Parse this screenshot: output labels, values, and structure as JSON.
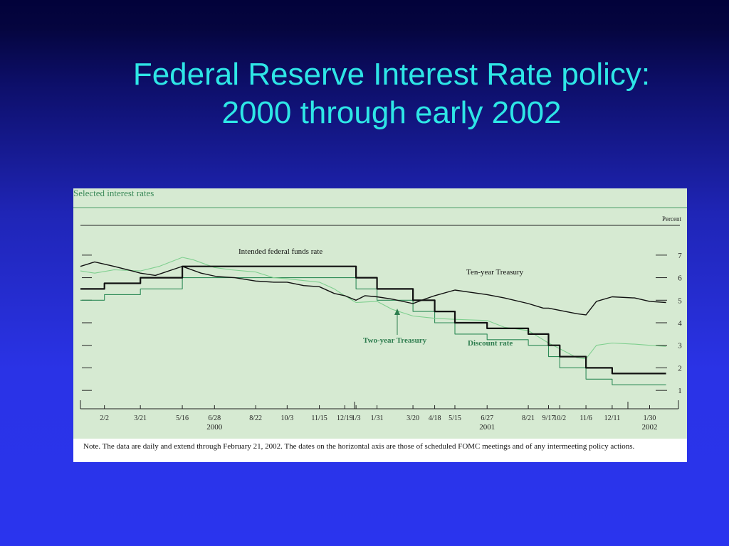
{
  "slide": {
    "title_line1": "Federal Reserve Interest Rate policy:",
    "title_line2": "2000 through early 2002"
  },
  "colors": {
    "background_top": "#02023a",
    "background_bottom": "#2a34ee",
    "title": "#2ee6e6",
    "panel": "#d6ead2",
    "black_series": "#111111",
    "green_series": "#2e8b57",
    "light_green_series": "#7fcf8f"
  },
  "chart_data": {
    "type": "line",
    "title": "Selected interest rates",
    "ylabel": "Percent",
    "ylim": [
      0.5,
      7.5
    ],
    "yticks": [
      1,
      2,
      3,
      4,
      5,
      6,
      7
    ],
    "xlim": [
      "2000-01-01",
      "2002-02-28"
    ],
    "x_tick_labels": [
      {
        "label": "2/2",
        "date": "2000-02-02"
      },
      {
        "label": "3/21",
        "date": "2000-03-21"
      },
      {
        "label": "5/16",
        "date": "2000-05-16"
      },
      {
        "label": "6/28",
        "date": "2000-06-28"
      },
      {
        "label": "8/22",
        "date": "2000-08-22"
      },
      {
        "label": "10/3",
        "date": "2000-10-03"
      },
      {
        "label": "11/15",
        "date": "2000-11-15"
      },
      {
        "label": "12/19",
        "date": "2000-12-19"
      },
      {
        "label": "1/3",
        "date": "2001-01-03"
      },
      {
        "label": "1/31",
        "date": "2001-01-31"
      },
      {
        "label": "3/20",
        "date": "2001-03-20"
      },
      {
        "label": "4/18",
        "date": "2001-04-18"
      },
      {
        "label": "5/15",
        "date": "2001-05-15"
      },
      {
        "label": "6/27",
        "date": "2001-06-27"
      },
      {
        "label": "8/21",
        "date": "2001-08-21"
      },
      {
        "label": "9/17",
        "date": "2001-09-17"
      },
      {
        "label": "10/2",
        "date": "2001-10-02"
      },
      {
        "label": "11/6",
        "date": "2001-11-06"
      },
      {
        "label": "12/11",
        "date": "2001-12-11"
      },
      {
        "label": "1/30",
        "date": "2002-01-30"
      }
    ],
    "year_labels": [
      {
        "label": "2000",
        "date": "2000-06-28"
      },
      {
        "label": "2001",
        "date": "2001-06-27"
      },
      {
        "label": "2002",
        "date": "2002-01-30"
      }
    ],
    "series": [
      {
        "name": "Intended federal funds rate",
        "style": "step",
        "x": [
          "2000-01-01",
          "2000-02-02",
          "2000-03-21",
          "2000-05-16",
          "2001-01-03",
          "2001-01-31",
          "2001-03-20",
          "2001-04-18",
          "2001-05-15",
          "2001-06-27",
          "2001-08-21",
          "2001-09-17",
          "2001-10-02",
          "2001-11-06",
          "2001-12-11",
          "2002-02-21"
        ],
        "y": [
          5.5,
          5.75,
          6.0,
          6.5,
          6.0,
          5.5,
          5.0,
          4.5,
          4.0,
          3.75,
          3.5,
          3.0,
          2.5,
          2.0,
          1.75,
          1.75
        ]
      },
      {
        "name": "Discount rate",
        "style": "step",
        "x": [
          "2000-01-01",
          "2000-02-02",
          "2000-03-21",
          "2000-05-16",
          "2001-01-03",
          "2001-01-31",
          "2001-03-20",
          "2001-04-18",
          "2001-05-15",
          "2001-06-27",
          "2001-08-21",
          "2001-09-17",
          "2001-10-02",
          "2001-11-06",
          "2001-12-11",
          "2002-02-21"
        ],
        "y": [
          5.0,
          5.25,
          5.5,
          6.0,
          5.5,
          5.0,
          4.5,
          4.0,
          3.5,
          3.25,
          3.0,
          2.5,
          2.0,
          1.5,
          1.25,
          1.25
        ]
      },
      {
        "name": "Ten-year Treasury",
        "style": "line",
        "x": [
          "2000-01-01",
          "2000-01-20",
          "2000-02-15",
          "2000-03-10",
          "2000-03-21",
          "2000-04-10",
          "2000-05-16",
          "2000-06-10",
          "2000-07-01",
          "2000-07-25",
          "2000-08-22",
          "2000-09-15",
          "2000-10-03",
          "2000-10-25",
          "2000-11-15",
          "2000-12-05",
          "2000-12-19",
          "2001-01-03",
          "2001-01-15",
          "2001-01-31",
          "2001-02-20",
          "2001-03-20",
          "2001-04-05",
          "2001-04-18",
          "2001-05-15",
          "2001-06-05",
          "2001-06-27",
          "2001-07-20",
          "2001-08-21",
          "2001-09-10",
          "2001-09-17",
          "2001-10-02",
          "2001-10-25",
          "2001-11-06",
          "2001-11-20",
          "2001-12-11",
          "2002-01-10",
          "2002-01-30",
          "2002-02-21"
        ],
        "y": [
          6.5,
          6.7,
          6.5,
          6.3,
          6.2,
          6.1,
          6.5,
          6.2,
          6.05,
          6.0,
          5.85,
          5.8,
          5.8,
          5.65,
          5.6,
          5.3,
          5.2,
          5.0,
          5.2,
          5.15,
          5.05,
          4.85,
          5.05,
          5.2,
          5.45,
          5.35,
          5.25,
          5.1,
          4.85,
          4.65,
          4.65,
          4.55,
          4.4,
          4.35,
          4.95,
          5.15,
          5.1,
          4.95,
          4.9
        ]
      },
      {
        "name": "Two-year Treasury",
        "style": "line",
        "x": [
          "2000-01-01",
          "2000-01-20",
          "2000-02-15",
          "2000-03-21",
          "2000-04-15",
          "2000-05-16",
          "2000-05-30",
          "2000-06-28",
          "2000-07-20",
          "2000-08-22",
          "2000-09-15",
          "2000-10-03",
          "2000-11-15",
          "2000-12-05",
          "2000-12-19",
          "2001-01-03",
          "2001-01-31",
          "2001-02-20",
          "2001-03-20",
          "2001-04-18",
          "2001-05-15",
          "2001-06-27",
          "2001-07-20",
          "2001-08-21",
          "2001-09-17",
          "2001-10-02",
          "2001-10-25",
          "2001-11-06",
          "2001-11-20",
          "2001-12-11",
          "2002-01-10",
          "2002-01-30",
          "2002-02-21"
        ],
        "y": [
          6.3,
          6.2,
          6.35,
          6.3,
          6.5,
          6.9,
          6.8,
          6.45,
          6.35,
          6.25,
          6.0,
          5.95,
          5.8,
          5.5,
          5.2,
          4.9,
          4.95,
          4.6,
          4.3,
          4.2,
          4.15,
          4.1,
          3.8,
          3.65,
          3.1,
          2.85,
          2.45,
          2.4,
          3.0,
          3.1,
          3.05,
          3.0,
          2.95
        ]
      }
    ],
    "annotations": [
      {
        "text": "Intended federal funds rate",
        "series": "Intended federal funds rate"
      },
      {
        "text": "Ten-year Treasury",
        "series": "Ten-year Treasury"
      },
      {
        "text": "Two-year Treasury",
        "series": "Two-year Treasury",
        "arrow": true
      },
      {
        "text": "Discount rate",
        "series": "Discount rate"
      }
    ],
    "grid": false,
    "legend": "none",
    "note": "Note.  The data are daily and extend through February 21, 2002. The dates on the horizontal axis are those of scheduled FOMC meetings and of any intermeeting policy actions."
  }
}
